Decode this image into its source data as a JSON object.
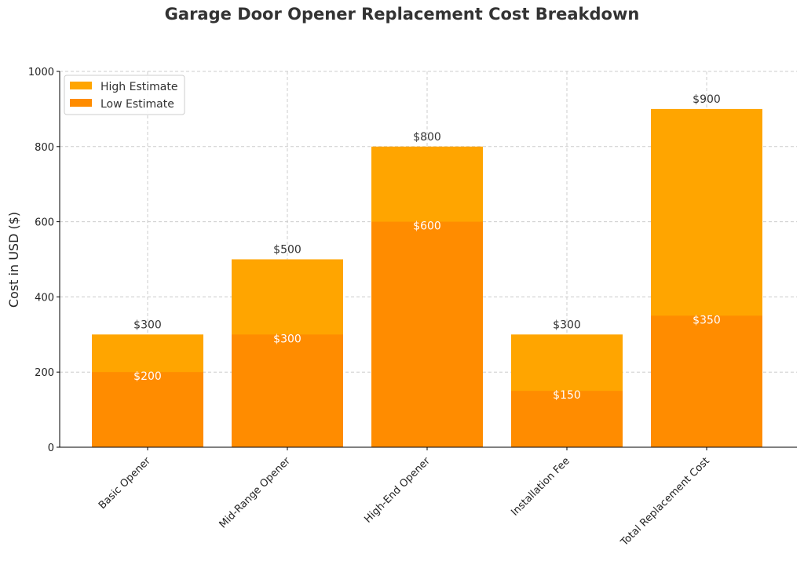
{
  "chart_data": {
    "type": "bar",
    "title": "Garage Door Opener Replacement Cost Breakdown",
    "xlabel": "",
    "ylabel": "Cost in USD ($)",
    "ylim": [
      0,
      1000
    ],
    "yticks": [
      0,
      200,
      400,
      600,
      800,
      1000
    ],
    "grid": true,
    "legend_position": "top-left",
    "categories": [
      "Basic Opener",
      "Mid-Range Opener",
      "High-End Opener",
      "Installation Fee",
      "Total Replacement Cost"
    ],
    "series": [
      {
        "name": "High Estimate",
        "values": [
          300,
          500,
          800,
          300,
          900
        ],
        "labels": [
          "$300",
          "$500",
          "$800",
          "$300",
          "$900"
        ],
        "color": "#FFA500"
      },
      {
        "name": "Low Estimate",
        "values": [
          200,
          300,
          600,
          150,
          350
        ],
        "labels": [
          "$200",
          "$300",
          "$600",
          "$150",
          "$350"
        ],
        "color": "#FF8C00"
      }
    ]
  }
}
